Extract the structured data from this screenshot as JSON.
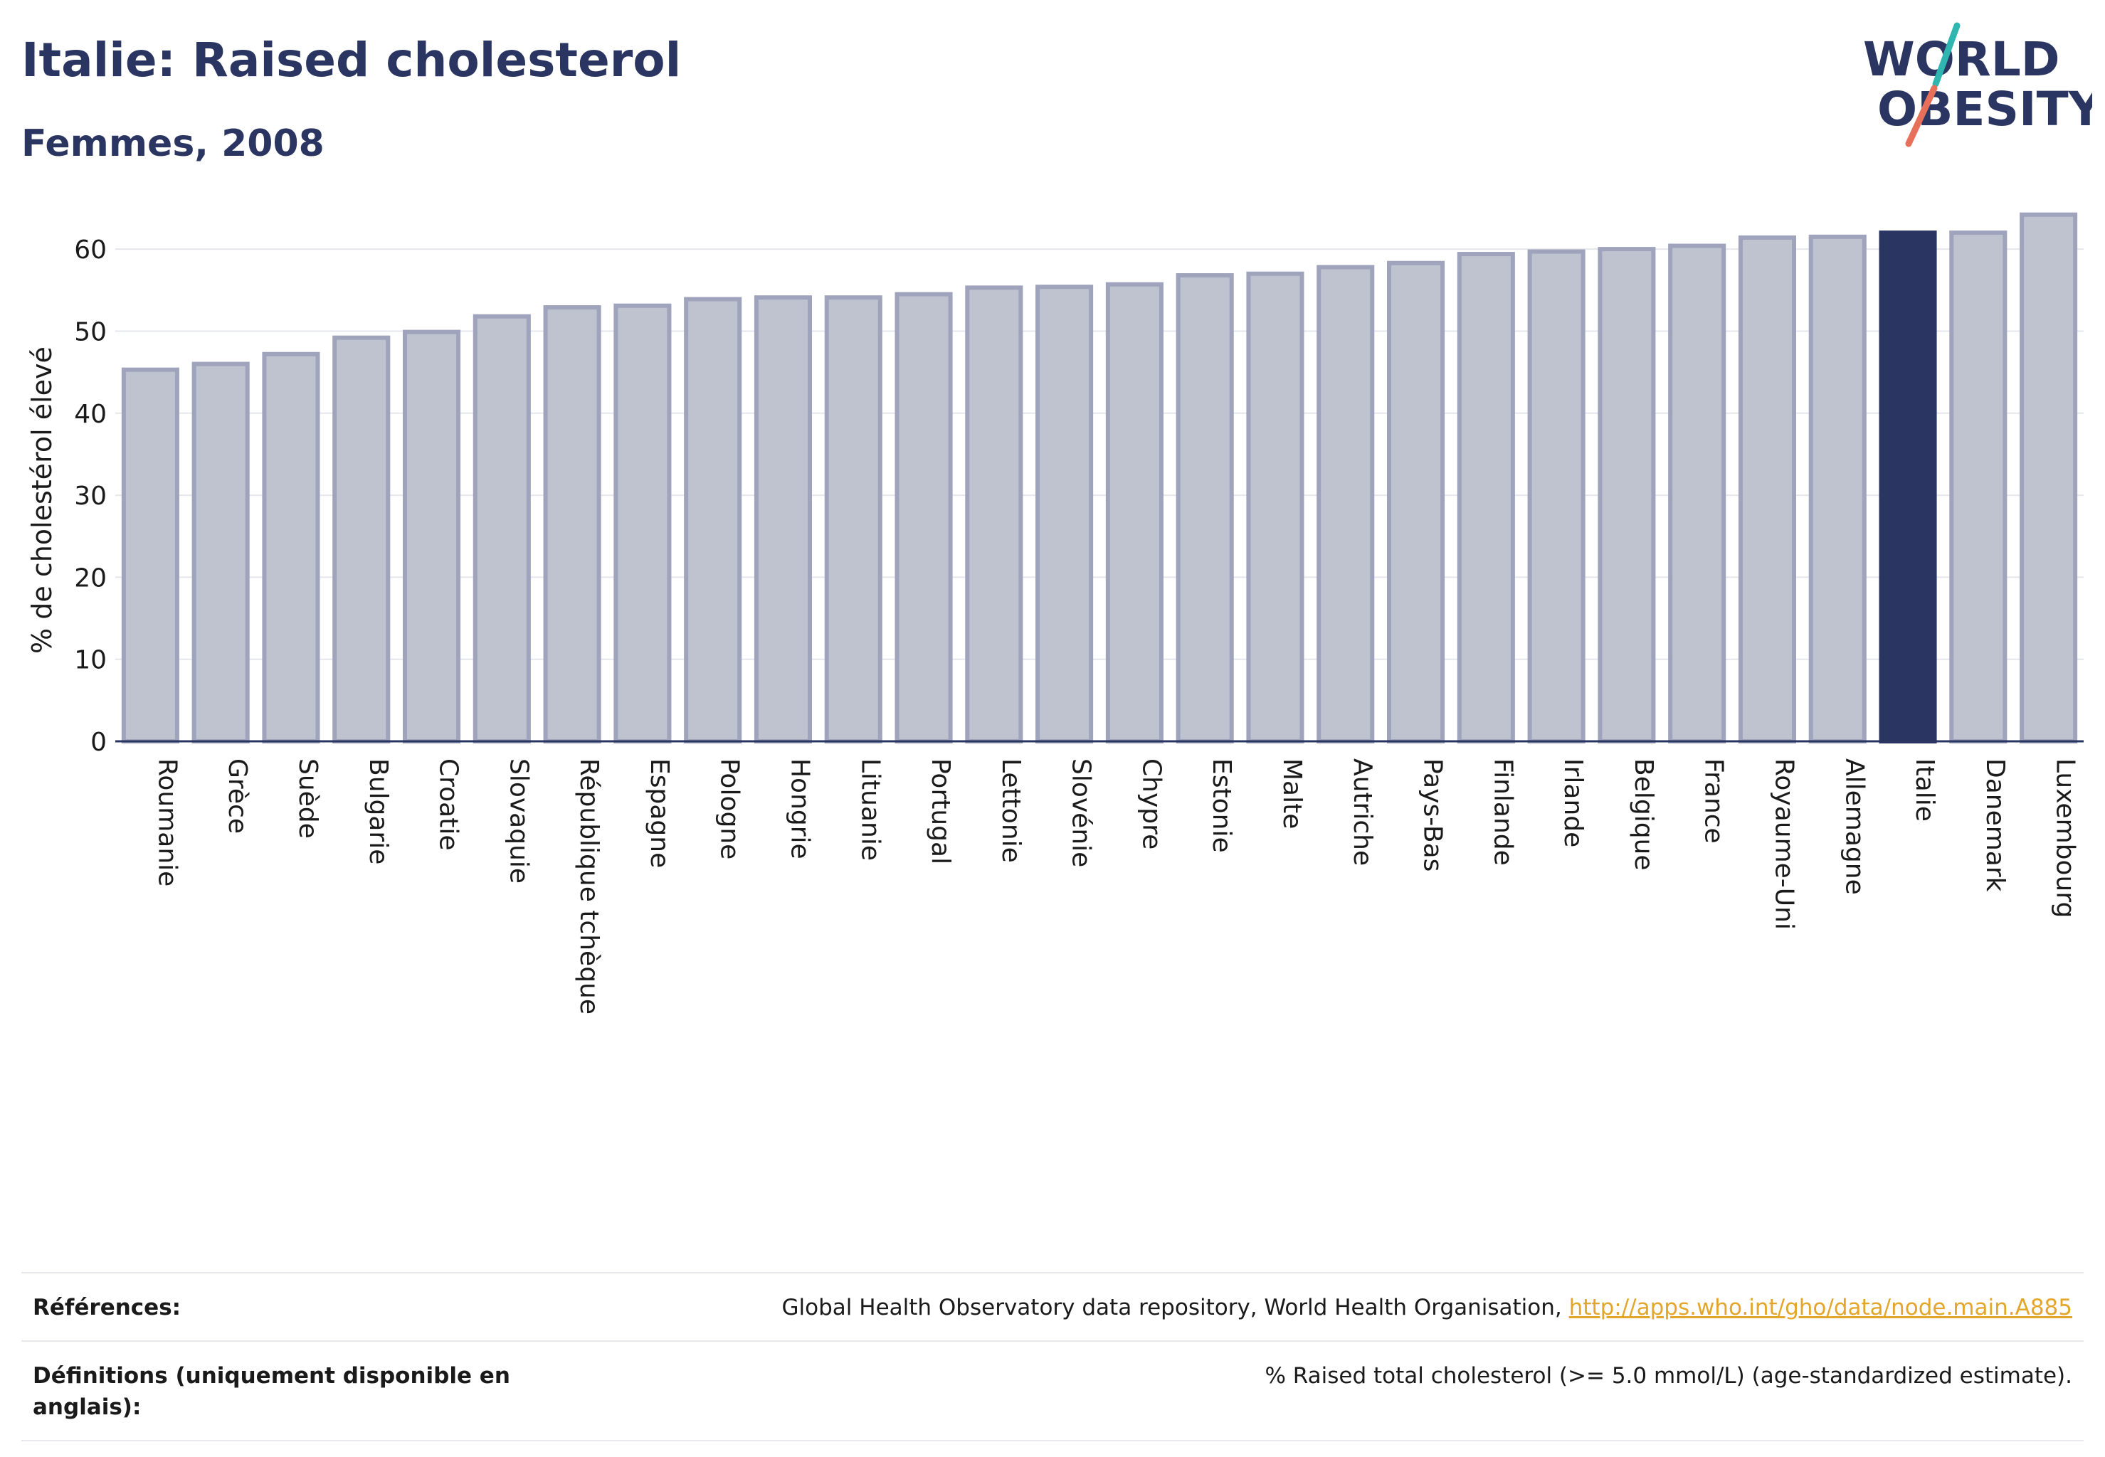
{
  "header": {
    "title": "Italie: Raised cholesterol",
    "subtitle": "Femmes, 2008"
  },
  "logo": {
    "line1": "WORLD",
    "line2": "OBESITY",
    "colors": {
      "text": "#2a3561",
      "slash_top": "#2fb6b0",
      "slash_bottom": "#e8705a"
    }
  },
  "chart_data": {
    "type": "bar",
    "title": "Italie: Raised cholesterol",
    "subtitle": "Femmes, 2008",
    "ylabel": "% de cholestérol élevé",
    "xlabel": "",
    "ylim": [
      0,
      64
    ],
    "yticks": [
      0,
      10,
      20,
      30,
      40,
      50,
      60
    ],
    "grid": true,
    "highlight": "Italie",
    "colors": {
      "bar": "#bfc2cf",
      "bar_border": "#9fa3bb",
      "highlight": "#2a3561"
    },
    "categories": [
      "Roumanie",
      "Grèce",
      "Suède",
      "Bulgarie",
      "Croatie",
      "Slovaquie",
      "République tchèque",
      "Espagne",
      "Pologne",
      "Hongrie",
      "Lituanie",
      "Portugal",
      "Lettonie",
      "Slovénie",
      "Chypre",
      "Estonie",
      "Malte",
      "Autriche",
      "Pays-Bas",
      "Finlande",
      "Irlande",
      "Belgique",
      "France",
      "Royaume-Uni",
      "Allemagne",
      "Italie",
      "Danemark",
      "Luxembourg"
    ],
    "values": [
      45.3,
      46.0,
      47.2,
      49.2,
      49.9,
      51.8,
      52.9,
      53.1,
      53.9,
      54.1,
      54.1,
      54.5,
      55.3,
      55.4,
      55.7,
      56.8,
      57.0,
      57.8,
      58.3,
      59.4,
      59.7,
      60.0,
      60.4,
      61.4,
      61.5,
      62.0,
      62.0,
      64.2
    ]
  },
  "footer": {
    "references_label": "Références:",
    "references_text": "Global Health Observatory data repository, World Health Organisation,",
    "references_link": "http://apps.who.int/gho/data/node.main.A885",
    "definitions_label": "Définitions (uniquement disponible en anglais):",
    "definitions_text": "% Raised total cholesterol (>= 5.0 mmol/L) (age-standardized estimate)."
  }
}
